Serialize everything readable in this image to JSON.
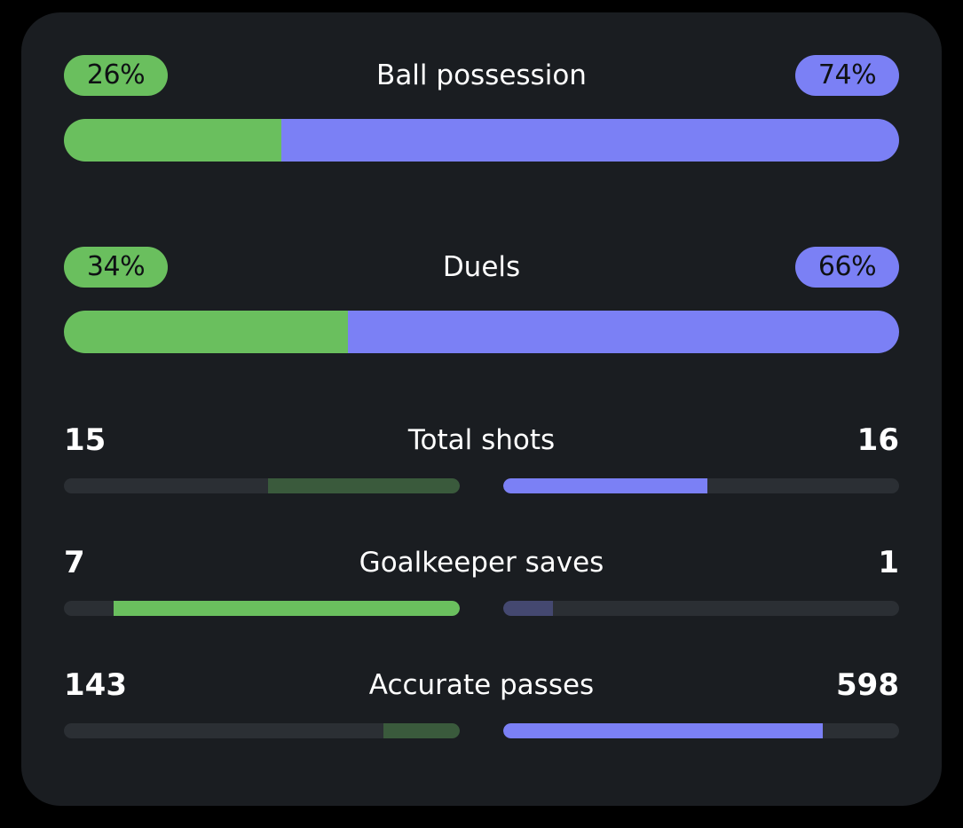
{
  "colors": {
    "home": "#6abf5e",
    "away": "#7b80f5",
    "home_dim": "#3a5a3c",
    "away_dim": "#444870",
    "track": "#2b2f34"
  },
  "percent_stats": [
    {
      "label": "Ball possession",
      "home_text": "26%",
      "away_text": "74%",
      "home": 26,
      "away": 74
    },
    {
      "label": "Duels",
      "home_text": "34%",
      "away_text": "66%",
      "home": 34,
      "away": 66
    }
  ],
  "count_stats": [
    {
      "label": "Total shots",
      "home_text": "15",
      "away_text": "16",
      "home": 15,
      "away": 16,
      "highlight": "away"
    },
    {
      "label": "Goalkeeper saves",
      "home_text": "7",
      "away_text": "1",
      "home": 7,
      "away": 1,
      "highlight": "home"
    },
    {
      "label": "Accurate passes",
      "home_text": "143",
      "away_text": "598",
      "home": 143,
      "away": 598,
      "highlight": "away"
    }
  ]
}
